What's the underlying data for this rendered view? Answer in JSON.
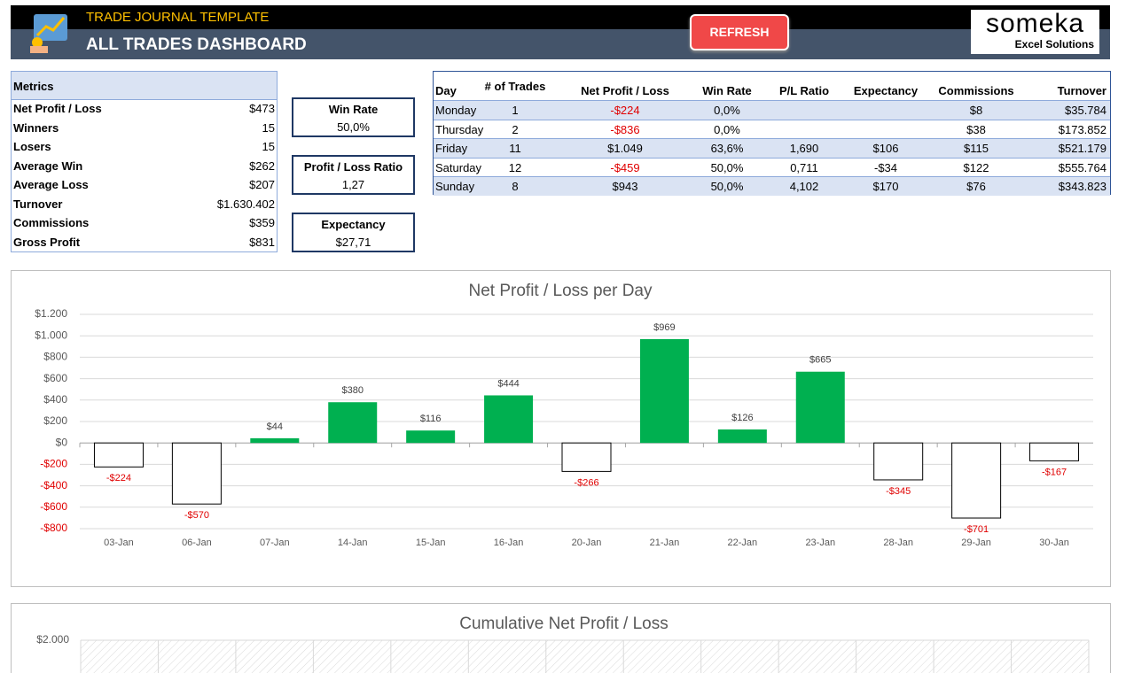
{
  "header": {
    "subtitle": "TRADE JOURNAL TEMPLATE",
    "title": "ALL TRADES DASHBOARD",
    "button": "REFRESH",
    "logo": "someka",
    "logo_tagline": "Excel Solutions"
  },
  "metrics": {
    "title": "Metrics",
    "rows": [
      [
        "Net Profit / Loss",
        "$473"
      ],
      [
        "Winners",
        "15"
      ],
      [
        "Losers",
        "15"
      ],
      [
        "Average Win",
        "$262"
      ],
      [
        "Average Loss",
        "$207"
      ],
      [
        "Turnover",
        "$1.630.402"
      ],
      [
        "Commissions",
        "$359"
      ],
      [
        "Gross Profit",
        "$831"
      ]
    ]
  },
  "kpis": [
    {
      "label": "Win Rate",
      "value": "50,0%"
    },
    {
      "label": "Profit / Loss Ratio",
      "value": "1,27"
    },
    {
      "label": "Expectancy",
      "value": "$27,71"
    }
  ],
  "day_table": {
    "columns": [
      "Day",
      "# of Trades",
      "Net Profit / Loss",
      "Win Rate",
      "P/L Ratio",
      "Expectancy",
      "Commissions",
      "Turnover"
    ],
    "rows": [
      [
        "Monday",
        "1",
        "-$224",
        "0,0%",
        null,
        null,
        "$8",
        "$35.784"
      ],
      [
        "Thursday",
        "2",
        "-$836",
        "0,0%",
        null,
        null,
        "$38",
        "$173.852"
      ],
      [
        "Friday",
        "11",
        "$1.049",
        "63,6%",
        "1,690",
        "$106",
        "$115",
        "$521.179"
      ],
      [
        "Saturday",
        "12",
        "-$459",
        "50,0%",
        "0,711",
        "-$34",
        "$122",
        "$555.764"
      ],
      [
        "Sunday",
        "8",
        "$943",
        "50,0%",
        "4,102",
        "$170",
        "$76",
        "$343.823"
      ]
    ]
  },
  "chart_data": [
    {
      "type": "bar",
      "title": "Net Profit / Loss per Day",
      "categories": [
        "03-Jan",
        "06-Jan",
        "07-Jan",
        "14-Jan",
        "15-Jan",
        "16-Jan",
        "20-Jan",
        "21-Jan",
        "22-Jan",
        "23-Jan",
        "28-Jan",
        "29-Jan",
        "30-Jan"
      ],
      "values": [
        -224,
        -570,
        44,
        380,
        116,
        444,
        -266,
        969,
        126,
        665,
        -345,
        -701,
        -167
      ],
      "value_labels": [
        "-$224",
        "-$570",
        "$44",
        "$380",
        "$116",
        "$444",
        "-$266",
        "$969",
        "$126",
        "$665",
        "-$345",
        "-$701",
        "-$167"
      ],
      "positive_color": "#00b050",
      "negative_color": "#ffffff",
      "negative_label_color": "#e00000",
      "ylim": [
        -800,
        1200
      ],
      "yticks": [
        {
          "value": -800,
          "label": "-$800"
        },
        {
          "value": -600,
          "label": "-$600"
        },
        {
          "value": -400,
          "label": "-$400"
        },
        {
          "value": -200,
          "label": "-$200"
        },
        {
          "value": 0,
          "label": "$0"
        },
        {
          "value": 200,
          "label": "$200"
        },
        {
          "value": 400,
          "label": "$400"
        },
        {
          "value": 600,
          "label": "$600"
        },
        {
          "value": 800,
          "label": "$800"
        },
        {
          "value": 1000,
          "label": "$1.000"
        },
        {
          "value": 1200,
          "label": "$1.200"
        }
      ],
      "grid": true
    },
    {
      "type": "line",
      "title": "Cumulative Net Profit / Loss",
      "yticks": [
        {
          "value": 2000,
          "label": "$2.000"
        }
      ]
    }
  ]
}
